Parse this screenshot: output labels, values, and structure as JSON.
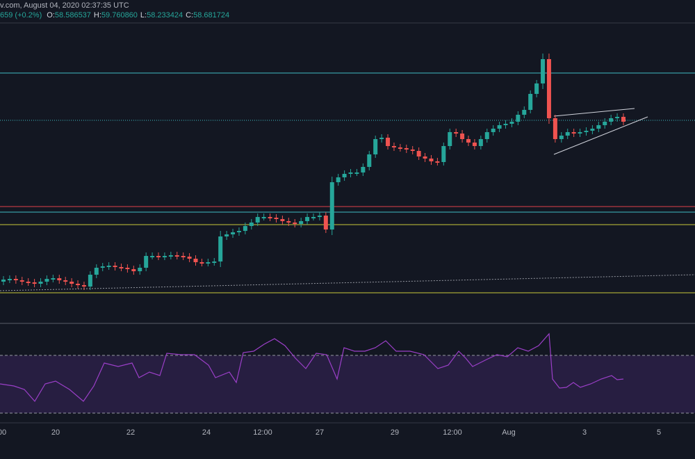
{
  "header": {
    "line1": "v.com, August 04, 2020 02:37:35 UTC",
    "change": "659 (+0.2%)",
    "ohlc": [
      {
        "key": "O:",
        "value": "58.586537"
      },
      {
        "key": "H:",
        "value": "59.760860"
      },
      {
        "key": "L:",
        "value": "58.233424"
      },
      {
        "key": "C:",
        "value": "58.681724"
      }
    ]
  },
  "time_axis": [
    "00",
    "20",
    "22",
    "24",
    "12:00",
    "27",
    "29",
    "12:00",
    "Aug",
    "3",
    "5"
  ]
}
